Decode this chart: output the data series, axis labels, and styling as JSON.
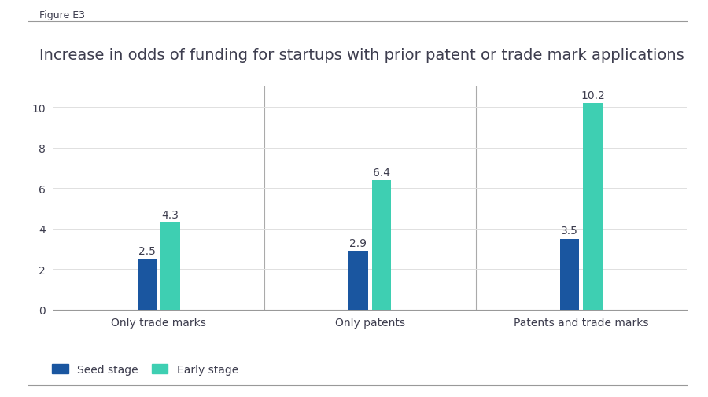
{
  "figure_label": "Figure E3",
  "title": "Increase in odds of funding for startups with prior patent or trade mark applications",
  "categories": [
    "Only trade marks",
    "Only patents",
    "Patents and trade marks"
  ],
  "seed_values": [
    2.5,
    2.9,
    3.5
  ],
  "early_values": [
    4.3,
    6.4,
    10.2
  ],
  "seed_color": "#1a56a0",
  "early_color": "#3ecfb2",
  "ylim": [
    0,
    11
  ],
  "yticks": [
    0,
    2,
    4,
    6,
    8,
    10
  ],
  "bar_width": 0.18,
  "legend_seed_label": "Seed stage",
  "legend_early_label": "Early stage",
  "title_fontsize": 14,
  "label_fontsize": 10,
  "tick_fontsize": 10,
  "value_fontsize": 10,
  "figure_label_fontsize": 9,
  "background_color": "#ffffff",
  "text_color": "#3d3d4e",
  "grid_color": "#e0e0e0",
  "divider_color": "#aaaaaa",
  "spine_color": "#999999"
}
